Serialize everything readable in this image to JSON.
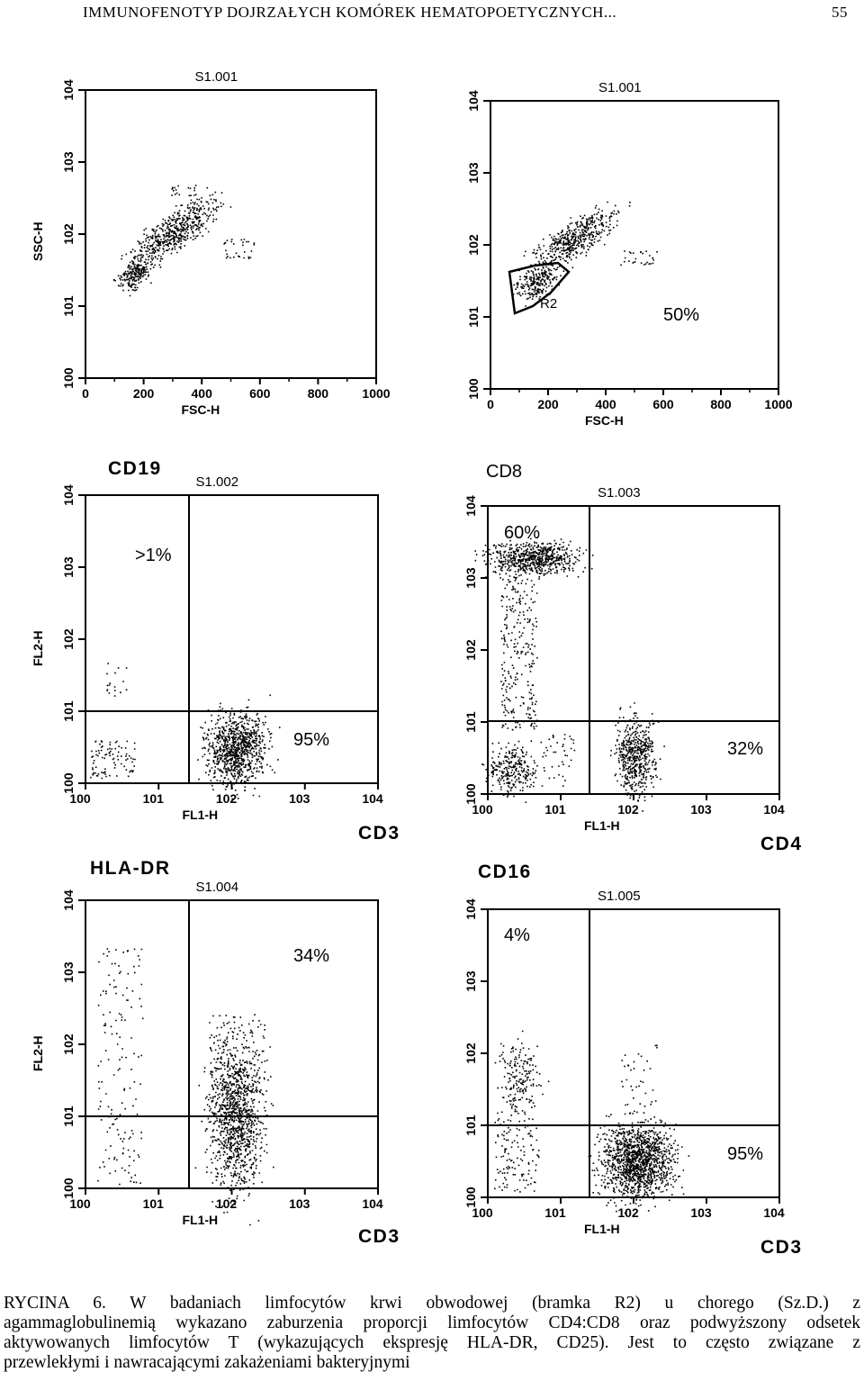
{
  "header": {
    "running_title": "IMMUNOFENOTYP DOJRZAŁYCH KOMÓREK HEMATOPOETYCZNYCH...",
    "page_number": "55"
  },
  "panels": [
    {
      "id": "p1",
      "sample_id": "S1.001",
      "x_axis": "FSC-H",
      "y_axis": "SSC-H",
      "x_ticks": [
        "0",
        "200",
        "400",
        "600",
        "800",
        "1000"
      ],
      "y_ticks": [
        "10^0",
        "10^1",
        "10^2",
        "10^3",
        "10^4"
      ]
    },
    {
      "id": "p2",
      "sample_id": "S1.001",
      "x_axis": "FSC-H",
      "x_ticks": [
        "0",
        "200",
        "400",
        "600",
        "800",
        "1000"
      ],
      "y_ticks": [
        "10^0",
        "10^1",
        "10^2",
        "10^3",
        "10^4"
      ],
      "gate_label": "R2",
      "percent": "50%"
    },
    {
      "id": "p3",
      "sample_id": "S1.002",
      "x_axis": "FL1-H",
      "y_axis": "FL2-H",
      "x_ticks": [
        "10^0",
        "10^1",
        "10^2",
        "10^3",
        "10^4"
      ],
      "y_ticks": [
        "10^0",
        "10^1",
        "10^2",
        "10^3",
        "10^4"
      ],
      "marker_y": "CD19",
      "marker_x": "CD3",
      "percent_upper_left": ">1%",
      "percent_lower_right": "95%"
    },
    {
      "id": "p4",
      "sample_id": "S1.003",
      "x_axis": "FL1-H",
      "x_ticks": [
        "10^0",
        "10^1",
        "10^2",
        "10^3",
        "10^4"
      ],
      "y_ticks": [
        "10^0",
        "10^1",
        "10^2",
        "10^3",
        "10^4"
      ],
      "marker_y": "CD8",
      "marker_x": "CD4",
      "percent_upper_left": "60%",
      "percent_lower_right": "32%"
    },
    {
      "id": "p5",
      "sample_id": "S1.004",
      "x_axis": "FL1-H",
      "y_axis": "FL2-H",
      "x_ticks": [
        "10^0",
        "10^1",
        "10^2",
        "10^3",
        "10^4"
      ],
      "y_ticks": [
        "10^0",
        "10^1",
        "10^2",
        "10^3",
        "10^4"
      ],
      "marker_y": "HLA-DR",
      "marker_x": "CD3",
      "percent_upper_right": "34%"
    },
    {
      "id": "p6",
      "sample_id": "S1.005",
      "x_axis": "FL1-H",
      "x_ticks": [
        "10^0",
        "10^1",
        "10^2",
        "10^3",
        "10^4"
      ],
      "y_ticks": [
        "10^0",
        "10^1",
        "10^2",
        "10^3",
        "10^4"
      ],
      "marker_y": "CD16",
      "marker_x": "CD3",
      "percent_upper_left": "4%",
      "percent_lower_right": "95%"
    }
  ],
  "caption_lines": [
    "RYCINA 6. W badaniach limfocytów krwi obwodowej (bramka R2) u chorego (Sz.D.) z",
    "agammaglobulinemią wykazano zaburzenia proporcji limfocytów CD4:CD8 oraz podwyższony odsetek",
    "aktywowanych limfocytów T (wykazujących ekspresję HLA-DR, CD25). Jest to często związane z",
    "przewlekłymi i nawracającymi zakażeniami bakteryjnymi"
  ]
}
